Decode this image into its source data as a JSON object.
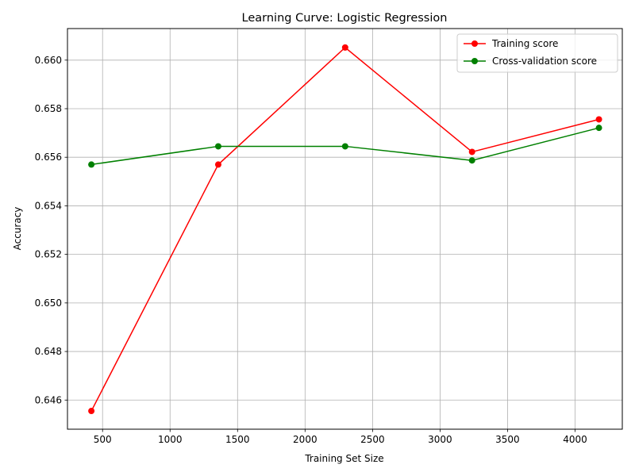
{
  "chart_data": {
    "type": "line",
    "title": "Learning Curve: Logistic Regression",
    "xlabel": "Training Set Size",
    "ylabel": "Accuracy",
    "xlim": [
      240,
      4350
    ],
    "ylim": [
      0.6448,
      0.6613
    ],
    "xticks": [
      500,
      1000,
      1500,
      2000,
      2500,
      3000,
      3500,
      4000
    ],
    "yticks": [
      0.646,
      0.648,
      0.65,
      0.652,
      0.654,
      0.656,
      0.658,
      0.66
    ],
    "grid": true,
    "legend_position": "top-right",
    "x": [
      417,
      1357,
      2297,
      3237,
      4177
    ],
    "series": [
      {
        "name": "Training score",
        "color": "#ff0000",
        "values": [
          0.64555,
          0.6557,
          0.66052,
          0.65622,
          0.65756
        ]
      },
      {
        "name": "Cross-validation score",
        "color": "#008000",
        "values": [
          0.6557,
          0.65645,
          0.65645,
          0.65587,
          0.65721
        ]
      }
    ]
  }
}
